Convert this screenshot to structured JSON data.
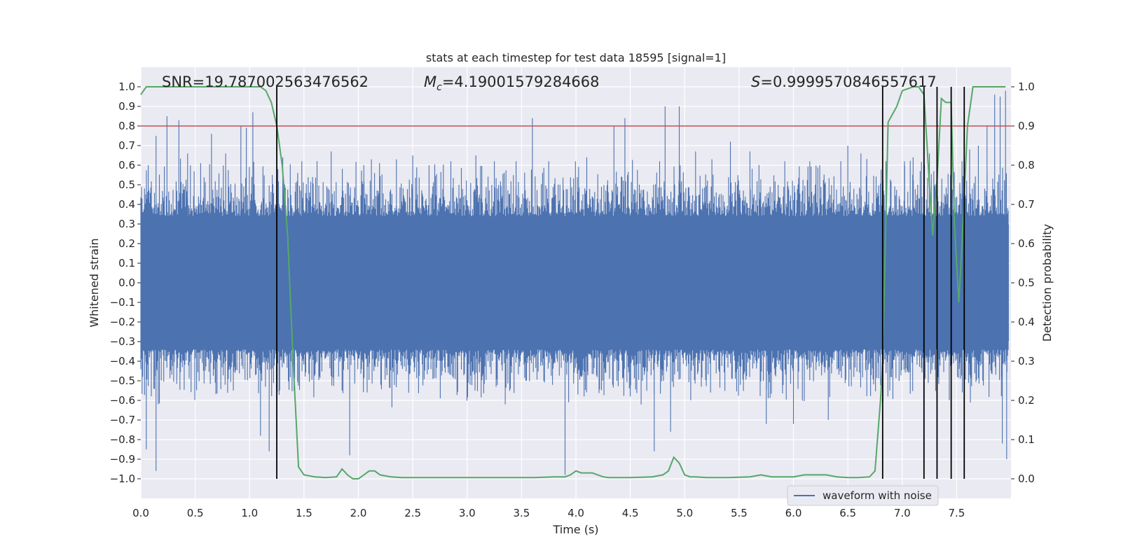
{
  "chart_data": {
    "type": "line",
    "title": "stats at each timestep for test data 18595 [signal=1]",
    "xlabel": "Time (s)",
    "ylabel_left": "Whitened strain",
    "ylabel_right": "Detection probability",
    "xlim": [
      0.0,
      8.0
    ],
    "ylim_left": [
      -1.1,
      1.1
    ],
    "ylim_right": [
      -0.05,
      1.05
    ],
    "x_ticks": [
      "0.0",
      "0.5",
      "1.0",
      "1.5",
      "2.0",
      "2.5",
      "3.0",
      "3.5",
      "4.0",
      "4.5",
      "5.0",
      "5.5",
      "6.0",
      "6.5",
      "7.0",
      "7.5"
    ],
    "y_ticks_left": [
      "-1.0",
      "-0.9",
      "-0.8",
      "-0.7",
      "-0.6",
      "-0.5",
      "-0.4",
      "-0.3",
      "-0.2",
      "-0.1",
      "0.0",
      "0.1",
      "0.2",
      "0.3",
      "0.4",
      "0.5",
      "0.6",
      "0.7",
      "0.8",
      "0.9",
      "1.0"
    ],
    "y_ticks_right": [
      "0.0",
      "0.1",
      "0.2",
      "0.3",
      "0.4",
      "0.5",
      "0.6",
      "0.7",
      "0.8",
      "0.9",
      "1.0"
    ],
    "annotations": {
      "snr": "SNR=19.787002563476562",
      "mc_symbol": "M",
      "mc_sub": "c",
      "mc_value": "=4.19001579284668",
      "s_symbol": "S",
      "s_value": "=0.9999570846557617"
    },
    "threshold": {
      "value": 0.9,
      "axis": "right",
      "color": "#c44e52"
    },
    "vertical_lines": [
      1.25,
      6.82,
      7.2,
      7.32,
      7.45,
      7.57
    ],
    "series": [
      {
        "name": "waveform with noise",
        "axis": "left",
        "color": "#4c72b0",
        "kind": "noise",
        "core_amplitude": 0.3,
        "peaks": [
          [
            0.05,
            -0.85
          ],
          [
            0.14,
            0.75
          ],
          [
            0.16,
            -0.62
          ],
          [
            0.14,
            -0.96
          ],
          [
            0.24,
            0.85
          ],
          [
            0.35,
            0.83
          ],
          [
            0.43,
            0.66
          ],
          [
            0.55,
            0.61
          ],
          [
            0.65,
            0.76
          ],
          [
            0.78,
            0.66
          ],
          [
            0.85,
            -0.55
          ],
          [
            0.92,
            0.8
          ],
          [
            0.97,
            0.79
          ],
          [
            1.03,
            0.87
          ],
          [
            1.1,
            -0.78
          ],
          [
            1.18,
            -0.86
          ],
          [
            1.48,
            0.62
          ],
          [
            1.62,
            0.62
          ],
          [
            1.75,
            0.67
          ],
          [
            1.85,
            -0.55
          ],
          [
            1.92,
            -0.88
          ],
          [
            2.05,
            0.6
          ],
          [
            2.12,
            0.63
          ],
          [
            2.35,
            0.63
          ],
          [
            2.5,
            0.65
          ],
          [
            2.65,
            0.6
          ],
          [
            2.85,
            0.62
          ],
          [
            3.08,
            0.65
          ],
          [
            3.25,
            0.62
          ],
          [
            3.35,
            -0.62
          ],
          [
            3.45,
            0.62
          ],
          [
            3.6,
            0.84
          ],
          [
            3.75,
            0.62
          ],
          [
            3.9,
            -0.98
          ],
          [
            4.1,
            0.64
          ],
          [
            4.35,
            0.8
          ],
          [
            4.45,
            0.84
          ],
          [
            4.5,
            -0.58
          ],
          [
            4.72,
            -0.86
          ],
          [
            4.77,
            0.62
          ],
          [
            4.82,
            0.9
          ],
          [
            4.87,
            -0.76
          ],
          [
            4.95,
            0.9
          ],
          [
            5.1,
            0.67
          ],
          [
            5.25,
            0.63
          ],
          [
            5.42,
            0.72
          ],
          [
            5.6,
            0.67
          ],
          [
            5.75,
            -0.72
          ],
          [
            5.92,
            0.62
          ],
          [
            6.0,
            -0.72
          ],
          [
            6.15,
            0.62
          ],
          [
            6.32,
            -0.7
          ],
          [
            6.5,
            0.7
          ],
          [
            6.62,
            0.66
          ],
          [
            6.85,
            0.62
          ],
          [
            7.02,
            0.62
          ],
          [
            7.1,
            0.64
          ],
          [
            7.25,
            0.66
          ],
          [
            7.55,
            0.62
          ],
          [
            7.62,
            0.68
          ],
          [
            7.7,
            0.7
          ],
          [
            7.78,
            0.8
          ],
          [
            7.85,
            0.96
          ],
          [
            7.9,
            0.95
          ],
          [
            7.92,
            -0.82
          ],
          [
            7.95,
            0.98
          ],
          [
            7.96,
            -0.9
          ]
        ]
      },
      {
        "name": "detection probability",
        "axis": "right",
        "color": "#55a868",
        "kind": "line",
        "x": [
          0.0,
          0.05,
          0.1,
          0.2,
          0.5,
          0.8,
          1.0,
          1.1,
          1.15,
          1.2,
          1.25,
          1.3,
          1.35,
          1.4,
          1.45,
          1.5,
          1.6,
          1.7,
          1.8,
          1.85,
          1.9,
          1.95,
          2.0,
          2.05,
          2.1,
          2.15,
          2.2,
          2.3,
          2.4,
          2.6,
          2.8,
          3.0,
          3.2,
          3.4,
          3.6,
          3.8,
          3.9,
          3.95,
          4.0,
          4.05,
          4.1,
          4.15,
          4.2,
          4.25,
          4.3,
          4.5,
          4.7,
          4.8,
          4.85,
          4.9,
          4.95,
          5.0,
          5.05,
          5.1,
          5.2,
          5.4,
          5.6,
          5.7,
          5.8,
          6.0,
          6.1,
          6.2,
          6.3,
          6.4,
          6.5,
          6.6,
          6.7,
          6.75,
          6.8,
          6.82,
          6.87,
          6.95,
          7.0,
          7.1,
          7.15,
          7.2,
          7.25,
          7.28,
          7.32,
          7.36,
          7.4,
          7.45,
          7.48,
          7.52,
          7.55,
          7.6,
          7.65,
          7.8,
          7.95
        ],
        "y": [
          0.98,
          1.0,
          1.0,
          1.0,
          1.0,
          1.0,
          1.0,
          1.0,
          0.99,
          0.96,
          0.9,
          0.8,
          0.62,
          0.3,
          0.03,
          0.01,
          0.005,
          0.003,
          0.005,
          0.025,
          0.01,
          0.0,
          0.0,
          0.01,
          0.02,
          0.02,
          0.01,
          0.005,
          0.003,
          0.003,
          0.003,
          0.003,
          0.003,
          0.003,
          0.003,
          0.005,
          0.005,
          0.01,
          0.02,
          0.015,
          0.015,
          0.015,
          0.01,
          0.005,
          0.003,
          0.003,
          0.005,
          0.01,
          0.02,
          0.055,
          0.04,
          0.01,
          0.005,
          0.005,
          0.003,
          0.003,
          0.005,
          0.01,
          0.005,
          0.005,
          0.01,
          0.01,
          0.01,
          0.005,
          0.003,
          0.003,
          0.005,
          0.02,
          0.2,
          0.3,
          0.91,
          0.95,
          0.99,
          1.0,
          1.0,
          0.98,
          0.75,
          0.62,
          0.76,
          0.97,
          0.96,
          0.96,
          0.65,
          0.45,
          0.6,
          0.9,
          1.0,
          1.0,
          1.0
        ]
      }
    ],
    "legend": {
      "position": "lower-right",
      "entries": [
        "waveform with noise"
      ]
    }
  }
}
